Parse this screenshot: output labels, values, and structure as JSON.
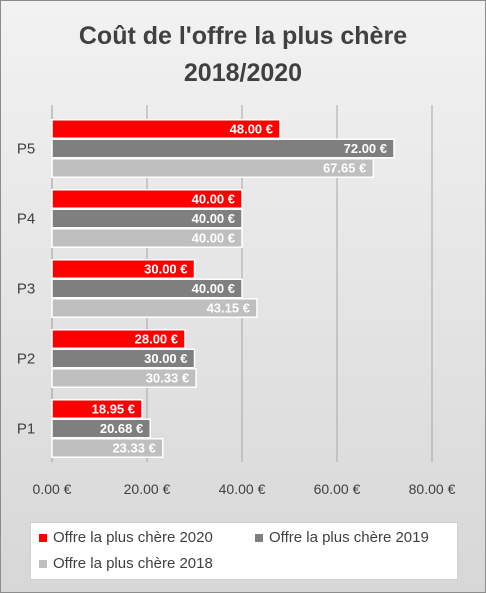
{
  "chart_data": {
    "type": "bar",
    "orientation": "horizontal",
    "title": [
      "Coût de l'offre la plus chère",
      "2018/2020"
    ],
    "categories": [
      "P5",
      "P4",
      "P3",
      "P2",
      "P1"
    ],
    "series": [
      {
        "name": "Offre la plus chère 2020",
        "color": "#ff0000",
        "values": [
          48.0,
          40.0,
          30.0,
          28.0,
          18.95
        ],
        "labels": [
          "48.00 €",
          "40.00 €",
          "30.00 €",
          "28.00 €",
          "18.95 €"
        ]
      },
      {
        "name": "Offre la plus chère 2019",
        "color": "#7f7f7f",
        "values": [
          72.0,
          40.0,
          40.0,
          30.0,
          20.68
        ],
        "labels": [
          "72.00 €",
          "40.00 €",
          "40.00 €",
          "30.00 €",
          "20.68 €"
        ]
      },
      {
        "name": "Offre la plus chère 2018",
        "color": "#bfbfbf",
        "values": [
          67.65,
          40.0,
          43.15,
          30.33,
          23.33
        ],
        "labels": [
          "67.65 €",
          "40.00 €",
          "43.15 €",
          "30.33 €",
          "23.33 €"
        ]
      }
    ],
    "xlim": [
      0,
      80
    ],
    "xticks": [
      0,
      20,
      40,
      60,
      80
    ],
    "xtick_labels": [
      "0.00 €",
      "20.00 €",
      "40.00 €",
      "60.00 €",
      "80.00 €"
    ],
    "grid": true,
    "legend_position": "bottom"
  }
}
